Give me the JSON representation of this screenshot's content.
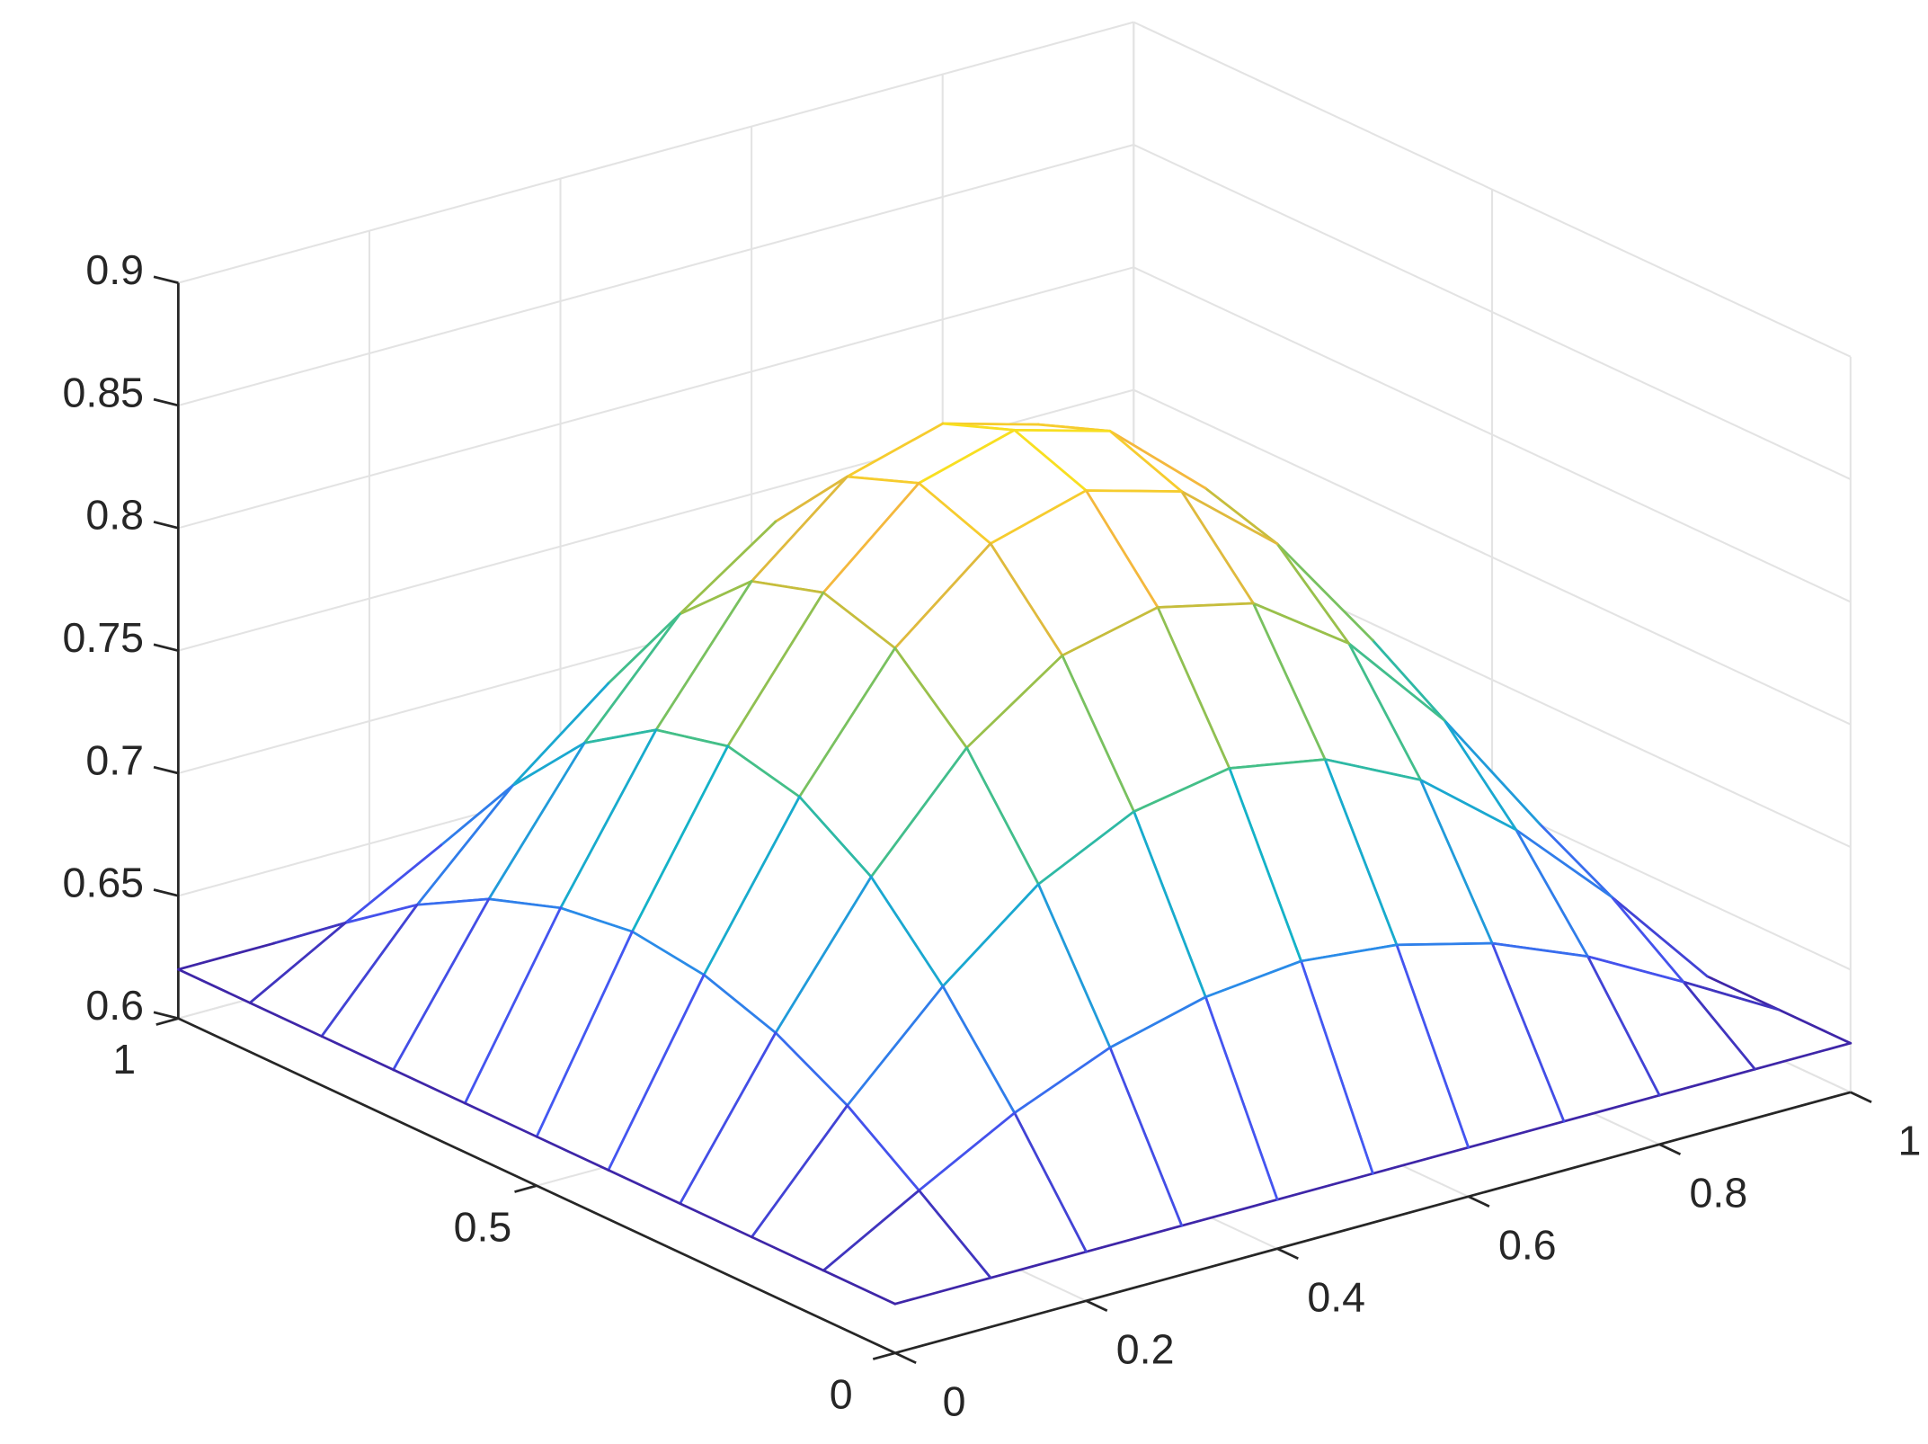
{
  "chart_data": {
    "type": "mesh",
    "x": [
      0,
      0.1,
      0.2,
      0.3,
      0.4,
      0.5,
      0.6,
      0.7,
      0.8,
      0.9,
      1
    ],
    "y": [
      0,
      0.1,
      0.2,
      0.3,
      0.4,
      0.5,
      0.6,
      0.7,
      0.8,
      0.9,
      1
    ],
    "z": [
      [
        0.62,
        0.62,
        0.62,
        0.62,
        0.62,
        0.62,
        0.62,
        0.62,
        0.62,
        0.62,
        0.62
      ],
      [
        0.62,
        0.642,
        0.663,
        0.679,
        0.689,
        0.693,
        0.689,
        0.679,
        0.663,
        0.642,
        0.62
      ],
      [
        0.62,
        0.663,
        0.701,
        0.732,
        0.751,
        0.758,
        0.751,
        0.732,
        0.701,
        0.663,
        0.62
      ],
      [
        0.62,
        0.679,
        0.732,
        0.774,
        0.801,
        0.81,
        0.801,
        0.774,
        0.732,
        0.679,
        0.62
      ],
      [
        0.62,
        0.689,
        0.751,
        0.801,
        0.833,
        0.844,
        0.833,
        0.801,
        0.751,
        0.689,
        0.62
      ],
      [
        0.62,
        0.693,
        0.758,
        0.81,
        0.844,
        0.855,
        0.844,
        0.81,
        0.758,
        0.693,
        0.62
      ],
      [
        0.62,
        0.689,
        0.751,
        0.801,
        0.833,
        0.844,
        0.833,
        0.801,
        0.751,
        0.689,
        0.62
      ],
      [
        0.62,
        0.679,
        0.732,
        0.774,
        0.801,
        0.81,
        0.801,
        0.774,
        0.732,
        0.679,
        0.62
      ],
      [
        0.62,
        0.663,
        0.701,
        0.732,
        0.751,
        0.758,
        0.751,
        0.732,
        0.701,
        0.663,
        0.62
      ],
      [
        0.62,
        0.642,
        0.663,
        0.679,
        0.689,
        0.693,
        0.689,
        0.679,
        0.663,
        0.642,
        0.62
      ],
      [
        0.62,
        0.62,
        0.62,
        0.62,
        0.62,
        0.62,
        0.62,
        0.62,
        0.62,
        0.62,
        0.62
      ]
    ],
    "xlim": [
      0,
      1
    ],
    "ylim": [
      0,
      1
    ],
    "zlim": [
      0.6,
      0.9
    ],
    "xticks": [
      0,
      0.2,
      0.4,
      0.6,
      0.8,
      1
    ],
    "yticks": [
      0,
      0.5,
      1
    ],
    "zticks": [
      0.6,
      0.65,
      0.7,
      0.75,
      0.8,
      0.85,
      0.9
    ],
    "grid": true,
    "colormap": "parula"
  }
}
